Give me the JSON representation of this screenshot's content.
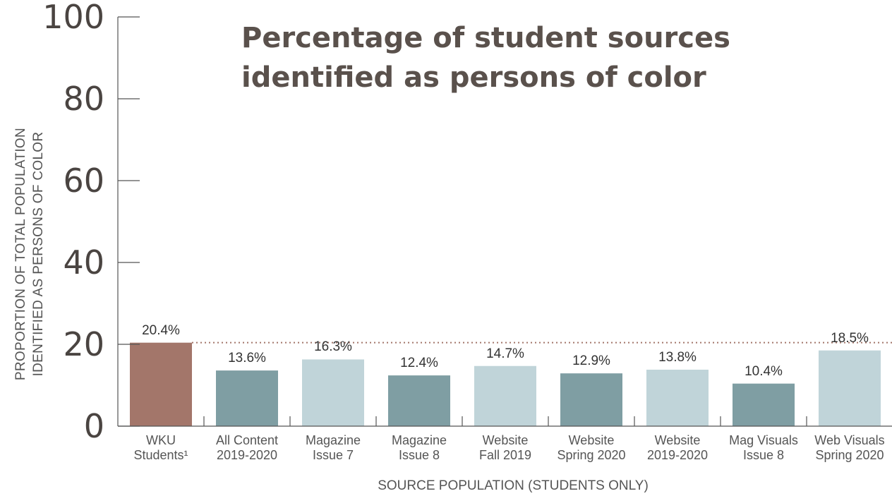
{
  "chart_data": {
    "type": "bar",
    "title": "Percentage of student sources identified as persons of color",
    "xlabel": "SOURCE POPULATION (STUDENTS ONLY)",
    "ylabel": "PROPORTION OF TOTAL POPULATION IDENTIFIED AS PERSONS OF COLOR",
    "ylim": [
      0,
      100
    ],
    "yticks": [
      "0",
      "20",
      "40",
      "60",
      "80",
      "100"
    ],
    "categories": [
      "WKU Students¹",
      "All Content 2019-2020",
      "Magazine Issue 7",
      "Magazine Issue 8",
      "Website Fall 2019",
      "Website Spring 2020",
      "Website 2019-2020",
      "Mag Visuals Issue 8",
      "Web Visuals Spring 2020"
    ],
    "values": [
      20.4,
      13.6,
      16.3,
      12.4,
      14.7,
      12.9,
      13.8,
      10.4,
      18.5
    ],
    "value_labels": [
      "20.4%",
      "13.6%",
      "16.3%",
      "12.4%",
      "14.7%",
      "12.9%",
      "13.8%",
      "10.4%",
      "18.5%"
    ],
    "bar_colors": [
      "#a3766a",
      "#7f9ea3",
      "#c0d4d9",
      "#7f9ea3",
      "#c0d4d9",
      "#7f9ea3",
      "#c0d4d9",
      "#7f9ea3",
      "#c0d4d9"
    ],
    "reference_line": {
      "value": 20.4,
      "style": "dotted",
      "color": "#a3766a"
    },
    "grid": false,
    "legend": "none"
  }
}
